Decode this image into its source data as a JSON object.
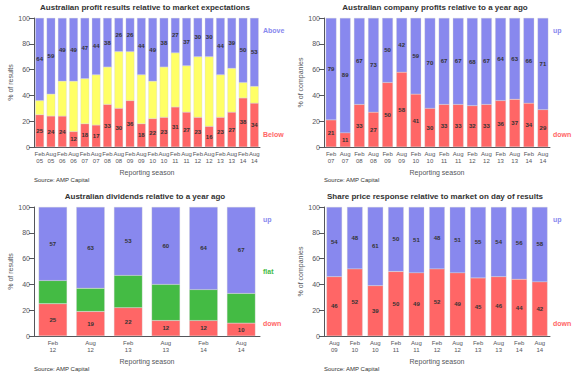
{
  "chart_data": [
    {
      "type": "bar",
      "title": "Australian profit results relative to market expectations",
      "xlabel": "Reporting season",
      "ylabel": "% of results",
      "source": "Source: AMP Capital",
      "categories": [
        "Feb\n05",
        "Aug\n05",
        "Feb\n06",
        "Aug\n06",
        "Feb\n07",
        "Aug\n07",
        "Feb\n08",
        "Aug\n08",
        "Feb\n09",
        "Aug\n09",
        "Feb\n10",
        "Aug\n10",
        "Feb\n11",
        "Aug\n11",
        "Feb\n12",
        "Aug\n12",
        "Feb\n13",
        "Aug\n13",
        "Feb\n14",
        "Aug\n14"
      ],
      "series": [
        {
          "name": "Below",
          "color": "#ff6666",
          "data_labels": true,
          "values": [
            25,
            24,
            24,
            12,
            18,
            17,
            33,
            30,
            36,
            18,
            22,
            23,
            31,
            27,
            23,
            16,
            23,
            27,
            38,
            34
          ]
        },
        {
          "color": "#ffff66",
          "data_labels": false,
          "values": [
            11,
            17,
            27,
            39,
            35,
            39,
            29,
            44,
            38,
            38,
            29,
            39,
            42,
            36,
            47,
            54,
            33,
            34,
            12,
            13
          ]
        },
        {
          "name": "Above",
          "color": "#8888ee",
          "data_labels": true,
          "values": [
            64,
            59,
            49,
            49,
            47,
            44,
            38,
            26,
            26,
            44,
            49,
            38,
            27,
            37,
            30,
            30,
            44,
            39,
            50,
            53
          ]
        }
      ],
      "stacked": true,
      "ylim": [
        0,
        100
      ],
      "yticks": [
        0,
        20,
        40,
        60,
        80,
        100
      ],
      "grid": false
    },
    {
      "type": "bar",
      "title": "Australian company profits relative to a year ago",
      "xlabel": "Reporting season",
      "ylabel": "% of companies",
      "source": "Source: AMP Capital",
      "categories": [
        "Feb\n07",
        "Aug\n07",
        "Feb\n08",
        "Aug\n08",
        "Feb\n09",
        "Aug\n09",
        "Feb\n10",
        "Aug\n10",
        "Feb\n11",
        "Aug\n11",
        "Feb\n12",
        "Aug\n12",
        "Feb\n13",
        "Aug\n13",
        "Feb\n14",
        "Aug\n14"
      ],
      "series": [
        {
          "name": "down",
          "color": "#ff6666",
          "data_labels": true,
          "values": [
            21,
            11,
            33,
            27,
            50,
            58,
            41,
            30,
            33,
            33,
            32,
            33,
            36,
            37,
            34,
            29
          ]
        },
        {
          "name": "up",
          "color": "#8888ee",
          "data_labels": true,
          "values": [
            79,
            89,
            67,
            73,
            50,
            42,
            59,
            70,
            67,
            67,
            68,
            67,
            64,
            63,
            66,
            71
          ]
        }
      ],
      "stacked": true,
      "ylim": [
        0,
        100
      ],
      "yticks": [
        0,
        20,
        40,
        60,
        80,
        100
      ],
      "grid": false
    },
    {
      "type": "bar",
      "title": "Australian dividends relative to a year ago",
      "xlabel": "Reporting season",
      "ylabel": "% of results",
      "source": "Source: AMP Capital",
      "categories": [
        "Feb\n12",
        "Aug\n12",
        "Feb\n13",
        "Aug\n13",
        "Feb\n14",
        "Aug\n14"
      ],
      "series": [
        {
          "name": "down",
          "color": "#ff6666",
          "data_labels": true,
          "values": [
            25,
            19,
            22,
            12,
            12,
            10
          ]
        },
        {
          "name": "flat",
          "color": "#44bb44",
          "data_labels": false,
          "values": [
            18,
            18,
            25,
            28,
            24,
            23
          ]
        },
        {
          "name": "up",
          "color": "#8888ee",
          "data_labels": true,
          "values": [
            57,
            63,
            53,
            60,
            64,
            67
          ]
        }
      ],
      "stacked": true,
      "ylim": [
        0,
        100
      ],
      "yticks": [
        0,
        20,
        40,
        60,
        80,
        100
      ],
      "grid": false
    },
    {
      "type": "bar",
      "title": "Share price response relative to market on day of results",
      "xlabel": "Reporting season",
      "ylabel": "% of companies",
      "source": "Source: AMP Capital",
      "categories": [
        "Aug\n09",
        "Feb\n10",
        "Aug\n10",
        "Feb\n11",
        "Aug\n11",
        "Feb\n12",
        "Aug\n12",
        "Feb\n13",
        "Aug\n13",
        "Feb\n14",
        "Aug\n14"
      ],
      "series": [
        {
          "name": "down",
          "color": "#ff6666",
          "data_labels": true,
          "values": [
            46,
            52,
            39,
            50,
            49,
            52,
            49,
            45,
            46,
            44,
            42
          ]
        },
        {
          "name": "up",
          "color": "#8888ee",
          "data_labels": true,
          "values": [
            54,
            48,
            61,
            50,
            51,
            48,
            51,
            55,
            54,
            56,
            58
          ]
        }
      ],
      "stacked": true,
      "ylim": [
        0,
        100
      ],
      "yticks": [
        0,
        20,
        40,
        60,
        80,
        100
      ],
      "grid": false
    }
  ]
}
